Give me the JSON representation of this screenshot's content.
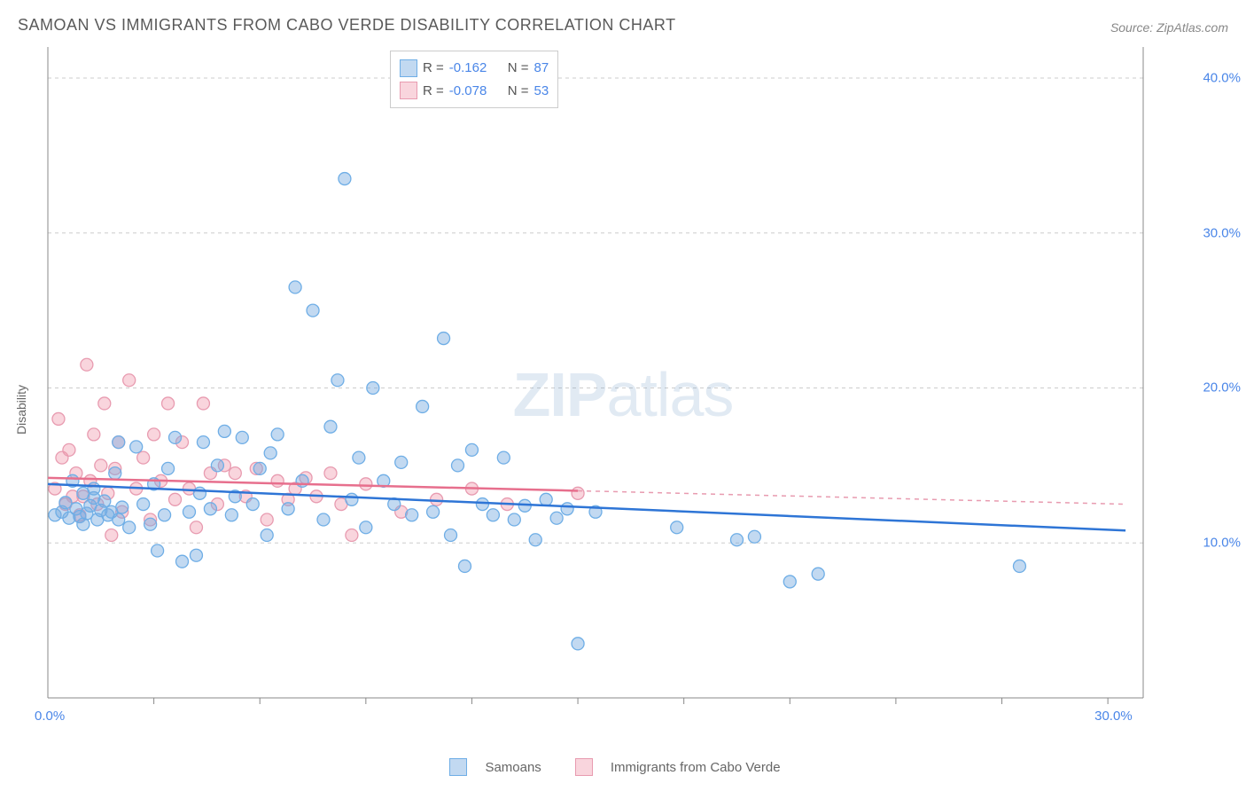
{
  "header": {
    "title": "SAMOAN VS IMMIGRANTS FROM CABO VERDE DISABILITY CORRELATION CHART",
    "source": "Source: ZipAtlas.com"
  },
  "axes": {
    "ylabel": "Disability",
    "x_ticks": [
      {
        "pos": 0.0,
        "label": "0.0%"
      },
      {
        "pos": 30.0,
        "label": "30.0%"
      }
    ],
    "y_ticks": [
      {
        "pos": 10.0,
        "label": "10.0%"
      },
      {
        "pos": 20.0,
        "label": "20.0%"
      },
      {
        "pos": 30.0,
        "label": "30.0%"
      },
      {
        "pos": 40.0,
        "label": "40.0%"
      }
    ],
    "xlim": [
      0,
      31
    ],
    "ylim": [
      0,
      42
    ],
    "x_minor_gridlines": [
      3,
      6,
      9,
      12,
      15,
      18,
      21,
      24,
      27,
      30
    ],
    "y_gridlines": [
      10,
      20,
      30,
      40
    ]
  },
  "style": {
    "background": "#ffffff",
    "grid_color": "#cccccc",
    "axis_color": "#888888",
    "tick_label_color": "#4a86e8",
    "series1_fill": "rgba(120,170,225,0.45)",
    "series1_stroke": "#6faee6",
    "series1_line": "#2e75d6",
    "series2_fill": "rgba(240,150,170,0.4)",
    "series2_stroke": "#e89bb0",
    "series2_line": "#e76f8d",
    "series2_line_dash": "#e89bb0",
    "marker_radius": 7,
    "line_width": 2.5,
    "watermark_text_a": "ZIP",
    "watermark_text_b": "atlas"
  },
  "legend_top": {
    "rows": [
      {
        "swatch_fill": "rgba(120,170,225,0.45)",
        "swatch_stroke": "#6faee6",
        "r_val": "-0.162",
        "n_val": "87"
      },
      {
        "swatch_fill": "rgba(240,150,170,0.4)",
        "swatch_stroke": "#e89bb0",
        "r_val": "-0.078",
        "n_val": "53"
      }
    ],
    "r_label": "R =",
    "n_label": "N ="
  },
  "legend_bottom": {
    "items": [
      {
        "swatch_fill": "rgba(120,170,225,0.45)",
        "swatch_stroke": "#6faee6",
        "label": "Samoans"
      },
      {
        "swatch_fill": "rgba(240,150,170,0.4)",
        "swatch_stroke": "#e89bb0",
        "label": "Immigrants from Cabo Verde"
      }
    ]
  },
  "series": [
    {
      "name": "Samoans",
      "fill": "rgba(120,170,225,0.45)",
      "stroke": "#6faee6",
      "trend": {
        "x1": 0,
        "y1": 13.8,
        "x2": 30.5,
        "y2": 10.8,
        "solid_to_x": 30.5,
        "color": "#2e75d6"
      },
      "points": [
        [
          0.2,
          11.8
        ],
        [
          0.4,
          12.0
        ],
        [
          0.5,
          12.6
        ],
        [
          0.6,
          11.6
        ],
        [
          0.7,
          14.0
        ],
        [
          0.8,
          12.2
        ],
        [
          0.9,
          11.7
        ],
        [
          1.0,
          13.2
        ],
        [
          1.1,
          11.9
        ],
        [
          1.2,
          12.4
        ],
        [
          1.3,
          12.9
        ],
        [
          1.4,
          11.5
        ],
        [
          1.5,
          12.1
        ],
        [
          1.6,
          12.7
        ],
        [
          1.7,
          11.8
        ],
        [
          1.8,
          12.0
        ],
        [
          1.9,
          14.5
        ],
        [
          2.0,
          16.5
        ],
        [
          2.1,
          12.3
        ],
        [
          2.3,
          11.0
        ],
        [
          2.5,
          16.2
        ],
        [
          2.7,
          12.5
        ],
        [
          2.9,
          11.2
        ],
        [
          3.1,
          9.5
        ],
        [
          3.3,
          11.8
        ],
        [
          3.4,
          14.8
        ],
        [
          3.6,
          16.8
        ],
        [
          3.8,
          8.8
        ],
        [
          4.0,
          12.0
        ],
        [
          4.2,
          9.2
        ],
        [
          4.4,
          16.5
        ],
        [
          4.6,
          12.2
        ],
        [
          4.8,
          15.0
        ],
        [
          5.0,
          17.2
        ],
        [
          5.2,
          11.8
        ],
        [
          5.5,
          16.8
        ],
        [
          5.8,
          12.5
        ],
        [
          6.0,
          14.8
        ],
        [
          6.2,
          10.5
        ],
        [
          6.5,
          17.0
        ],
        [
          6.8,
          12.2
        ],
        [
          7.0,
          26.5
        ],
        [
          7.2,
          14.0
        ],
        [
          7.5,
          25.0
        ],
        [
          7.8,
          11.5
        ],
        [
          8.0,
          17.5
        ],
        [
          8.2,
          20.5
        ],
        [
          8.4,
          33.5
        ],
        [
          8.6,
          12.8
        ],
        [
          8.8,
          15.5
        ],
        [
          9.0,
          11.0
        ],
        [
          9.2,
          20.0
        ],
        [
          9.5,
          14.0
        ],
        [
          9.8,
          12.5
        ],
        [
          10.0,
          15.2
        ],
        [
          10.3,
          11.8
        ],
        [
          10.6,
          18.8
        ],
        [
          10.9,
          12.0
        ],
        [
          11.2,
          23.2
        ],
        [
          11.4,
          10.5
        ],
        [
          11.6,
          15.0
        ],
        [
          11.8,
          8.5
        ],
        [
          12.0,
          16.0
        ],
        [
          12.3,
          12.5
        ],
        [
          12.6,
          11.8
        ],
        [
          12.9,
          15.5
        ],
        [
          13.2,
          11.5
        ],
        [
          13.5,
          12.4
        ],
        [
          13.8,
          10.2
        ],
        [
          14.1,
          12.8
        ],
        [
          14.4,
          11.6
        ],
        [
          14.7,
          12.2
        ],
        [
          15.0,
          3.5
        ],
        [
          15.5,
          12.0
        ],
        [
          17.8,
          11.0
        ],
        [
          19.5,
          10.2
        ],
        [
          20.0,
          10.4
        ],
        [
          21.0,
          7.5
        ],
        [
          21.8,
          8.0
        ],
        [
          27.5,
          8.5
        ],
        [
          1.0,
          11.2
        ],
        [
          1.3,
          13.5
        ],
        [
          2.0,
          11.5
        ],
        [
          3.0,
          13.8
        ],
        [
          4.3,
          13.2
        ],
        [
          5.3,
          13.0
        ],
        [
          6.3,
          15.8
        ]
      ]
    },
    {
      "name": "Immigrants from Cabo Verde",
      "fill": "rgba(240,150,170,0.4)",
      "stroke": "#e89bb0",
      "trend": {
        "x1": 0,
        "y1": 14.2,
        "x2": 30.5,
        "y2": 12.5,
        "solid_to_x": 15.0,
        "color": "#e76f8d",
        "dash_color": "#e89bb0"
      },
      "points": [
        [
          0.2,
          13.5
        ],
        [
          0.3,
          18.0
        ],
        [
          0.4,
          15.5
        ],
        [
          0.5,
          12.5
        ],
        [
          0.6,
          16.0
        ],
        [
          0.7,
          13.0
        ],
        [
          0.8,
          14.5
        ],
        [
          0.9,
          11.8
        ],
        [
          1.0,
          13.0
        ],
        [
          1.1,
          21.5
        ],
        [
          1.2,
          14.0
        ],
        [
          1.3,
          17.0
        ],
        [
          1.4,
          12.5
        ],
        [
          1.5,
          15.0
        ],
        [
          1.6,
          19.0
        ],
        [
          1.7,
          13.2
        ],
        [
          1.8,
          10.5
        ],
        [
          1.9,
          14.8
        ],
        [
          2.0,
          16.5
        ],
        [
          2.1,
          12.0
        ],
        [
          2.3,
          20.5
        ],
        [
          2.5,
          13.5
        ],
        [
          2.7,
          15.5
        ],
        [
          2.9,
          11.5
        ],
        [
          3.0,
          17.0
        ],
        [
          3.2,
          14.0
        ],
        [
          3.4,
          19.0
        ],
        [
          3.6,
          12.8
        ],
        [
          3.8,
          16.5
        ],
        [
          4.0,
          13.5
        ],
        [
          4.2,
          11.0
        ],
        [
          4.4,
          19.0
        ],
        [
          4.6,
          14.5
        ],
        [
          4.8,
          12.5
        ],
        [
          5.0,
          15.0
        ],
        [
          5.3,
          14.5
        ],
        [
          5.6,
          13.0
        ],
        [
          5.9,
          14.8
        ],
        [
          6.2,
          11.5
        ],
        [
          6.5,
          14.0
        ],
        [
          6.8,
          12.8
        ],
        [
          7.0,
          13.5
        ],
        [
          7.3,
          14.2
        ],
        [
          7.6,
          13.0
        ],
        [
          8.0,
          14.5
        ],
        [
          8.3,
          12.5
        ],
        [
          8.6,
          10.5
        ],
        [
          9.0,
          13.8
        ],
        [
          10.0,
          12.0
        ],
        [
          11.0,
          12.8
        ],
        [
          12.0,
          13.5
        ],
        [
          13.0,
          12.5
        ],
        [
          15.0,
          13.2
        ]
      ]
    }
  ]
}
